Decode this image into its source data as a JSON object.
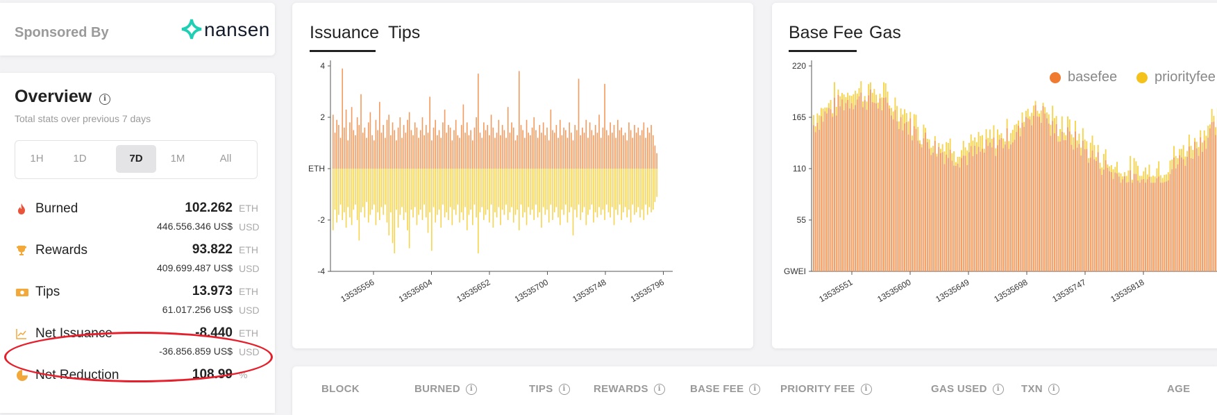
{
  "sponsor": {
    "label": "Sponsored By",
    "brand": "nansen"
  },
  "overview": {
    "title": "Overview",
    "subtitle": "Total stats over previous 7 days",
    "ranges": [
      "1H",
      "1D",
      "7D",
      "1M",
      "All"
    ],
    "active_range": "7D",
    "stats": [
      {
        "name": "Burned",
        "value": "102.262",
        "unit": "ETH",
        "usd": "446.556.346 US$",
        "usd_unit": "USD",
        "icon": "flame-icon"
      },
      {
        "name": "Rewards",
        "value": "93.822",
        "unit": "ETH",
        "usd": "409.699.487 US$",
        "usd_unit": "USD",
        "icon": "trophy-icon"
      },
      {
        "name": "Tips",
        "value": "13.973",
        "unit": "ETH",
        "usd": "61.017.256 US$",
        "usd_unit": "USD",
        "icon": "cash-icon"
      },
      {
        "name": "Net Issuance",
        "value": "-8.440",
        "unit": "ETH",
        "usd": "-36.856.859 US$",
        "usd_unit": "USD",
        "icon": "line-chart-icon"
      },
      {
        "name": "Net Reduction",
        "value": "108.99",
        "unit": "%",
        "icon": "pie-chart-icon"
      }
    ]
  },
  "issuance_card": {
    "tabs": [
      "Issuance",
      "Tips"
    ],
    "active_tab": "Issuance"
  },
  "basefee_card": {
    "tabs": [
      "Base Fee",
      "Gas"
    ],
    "active_tab": "Base Fee"
  },
  "table": {
    "headers": [
      {
        "label": "BLOCK",
        "info": false
      },
      {
        "label": "BURNED",
        "info": true
      },
      {
        "label": "TIPS",
        "info": true
      },
      {
        "label": "REWARDS",
        "info": true
      },
      {
        "label": "BASE FEE",
        "info": true
      },
      {
        "label": "PRIORITY FEE",
        "info": true
      },
      {
        "label": "GAS USED",
        "info": true
      },
      {
        "label": "TXN",
        "info": true
      },
      {
        "label": "AGE",
        "info": false
      }
    ]
  },
  "colors": {
    "orange": "#f39a5e",
    "yellow": "#f7d450",
    "brand": "#1ecfb3",
    "highlight": "#e51f2c"
  },
  "chart_data": [
    {
      "type": "bar",
      "ylabel": "ETH",
      "ylim": [
        -4,
        4
      ],
      "yticks": [
        "4",
        "2",
        "ETH",
        "-2",
        "-4"
      ],
      "xticks": [
        "13535556",
        "13535604",
        "13535652",
        "13535700",
        "13535748",
        "13535796"
      ],
      "series": [
        {
          "color": "#f39a5e",
          "values": [
            2.1,
            1.4,
            1.9,
            1.7,
            1.2,
            3.9,
            1.6,
            2.3,
            1.1,
            1.8,
            2.4,
            1.5,
            1.3,
            2.0,
            1.7,
            2.9,
            1.4,
            1.6,
            1.2,
            1.8,
            2.2,
            1.3,
            1.1,
            1.9,
            1.5,
            2.6,
            1.4,
            1.7,
            1.2,
            1.9,
            2.1,
            1.3,
            1.8,
            1.5,
            1.1,
            1.6,
            2.0,
            1.2,
            1.7,
            1.4,
            1.9,
            2.2,
            1.5,
            1.3,
            1.8,
            1.6,
            1.2,
            1.5,
            2.0,
            1.3,
            1.7,
            1.4,
            2.8,
            1.1,
            1.6,
            1.9,
            1.3,
            1.5,
            1.2,
            1.8,
            2.3,
            1.4,
            1.7,
            1.6,
            1.1,
            1.5,
            1.9,
            1.3,
            1.2,
            1.7,
            2.5,
            1.4,
            1.8,
            1.3,
            1.5,
            1.1,
            1.6,
            2.0,
            3.7,
            1.4,
            1.2,
            1.8,
            1.5,
            1.7,
            1.3,
            2.1,
            1.6,
            1.2,
            1.4,
            1.9,
            1.3,
            1.7,
            1.5,
            1.2,
            2.4,
            1.4,
            1.8,
            1.6,
            1.1,
            1.3,
            3.8,
            1.7,
            1.5,
            1.2,
            1.9,
            1.4,
            1.3,
            1.6,
            2.0,
            1.5,
            1.2,
            1.7,
            1.4,
            1.8,
            1.3,
            1.6,
            1.1,
            2.3,
            1.5,
            1.4,
            1.7,
            1.2,
            1.9,
            1.3,
            1.6,
            1.5,
            1.2,
            1.8,
            1.4,
            1.1,
            1.7,
            1.5,
            3.5,
            1.3,
            1.6,
            1.4,
            1.9,
            1.2,
            1.8,
            1.5,
            1.3,
            1.7,
            1.4,
            2.1,
            1.2,
            1.6,
            3.3,
            1.5,
            1.3,
            1.8,
            1.4,
            1.7,
            1.2,
            1.9,
            1.5,
            1.6,
            1.3,
            1.4,
            1.1,
            1.8,
            1.5,
            1.2,
            1.7,
            1.4,
            1.6,
            1.3,
            1.5,
            1.8,
            1.2,
            1.6,
            1.4,
            1.7,
            1.3,
            0.9,
            0.6
          ]
        },
        {
          "color": "#f7d450",
          "values": [
            -2.4,
            -1.6,
            -2.1,
            -1.8,
            -1.4,
            -2.0,
            -1.7,
            -2.3,
            -1.5,
            -1.9,
            -2.2,
            -1.6,
            -1.4,
            -2.0,
            -2.8,
            -1.7,
            -1.5,
            -1.9,
            -1.3,
            -2.1,
            -1.8,
            -1.6,
            -1.4,
            -2.2,
            -1.7,
            -2.0,
            -1.5,
            -1.8,
            -1.4,
            -2.1,
            -2.6,
            -1.7,
            -2.9,
            -3.3,
            -1.6,
            -2.3,
            -1.8,
            -1.5,
            -2.0,
            -1.7,
            -2.4,
            -3.1,
            -1.6,
            -1.9,
            -1.5,
            -2.2,
            -1.8,
            -1.6,
            -2.0,
            -1.4,
            -1.9,
            -2.5,
            -1.7,
            -3.2,
            -1.5,
            -2.1,
            -1.8,
            -1.6,
            -2.3,
            -1.4,
            -1.9,
            -1.7,
            -2.0,
            -1.5,
            -2.2,
            -1.6,
            -1.8,
            -1.4,
            -2.1,
            -1.7,
            -2.0,
            -1.5,
            -2.4,
            -1.8,
            -1.6,
            -2.2,
            -1.4,
            -1.9,
            -3.3,
            -1.7,
            -1.5,
            -2.0,
            -1.8,
            -1.6,
            -2.1,
            -1.4,
            -2.3,
            -1.7,
            -1.9,
            -1.5,
            -2.2,
            -1.6,
            -1.8,
            -1.4,
            -2.0,
            -1.7,
            -1.5,
            -2.1,
            -1.8,
            -1.6,
            -2.4,
            -1.4,
            -1.9,
            -1.7,
            -2.2,
            -1.5,
            -1.8,
            -1.6,
            -2.0,
            -1.4,
            -1.9,
            -1.7,
            -2.3,
            -1.5,
            -1.8,
            -1.6,
            -2.1,
            -1.4,
            -2.0,
            -1.7,
            -1.5,
            -1.9,
            -2.2,
            -1.6,
            -1.8,
            -1.4,
            -2.1,
            -1.7,
            -1.5,
            -2.6,
            -1.6,
            -1.9,
            -1.4,
            -2.0,
            -1.7,
            -1.5,
            -2.2,
            -1.8,
            -1.6,
            -1.4,
            -2.1,
            -1.7,
            -1.9,
            -1.5,
            -1.8,
            -1.6,
            -2.0,
            -1.4,
            -1.7,
            -1.9,
            -1.5,
            -2.2,
            -1.6,
            -1.8,
            -1.4,
            -2.0,
            -1.7,
            -1.5,
            -1.9,
            -1.6,
            -2.1,
            -1.4,
            -1.8,
            -1.7,
            -1.5,
            -1.9,
            -1.6,
            -2.0,
            -1.4,
            -1.8,
            -1.5,
            -1.7,
            -1.6,
            -1.3,
            -1.1
          ]
        }
      ]
    },
    {
      "type": "bar",
      "ylabel": "GWEI",
      "ylim": [
        0,
        220
      ],
      "yticks": [
        "220",
        "165",
        "110",
        "55",
        "GWEI"
      ],
      "xticks": [
        "13535551",
        "13535600",
        "13535649",
        "13535698",
        "13535747",
        "13535818"
      ],
      "series": [
        {
          "name": "basefee",
          "color": "#f39a5e"
        },
        {
          "name": "priorityfee",
          "color": "#f7d450"
        }
      ]
    }
  ]
}
